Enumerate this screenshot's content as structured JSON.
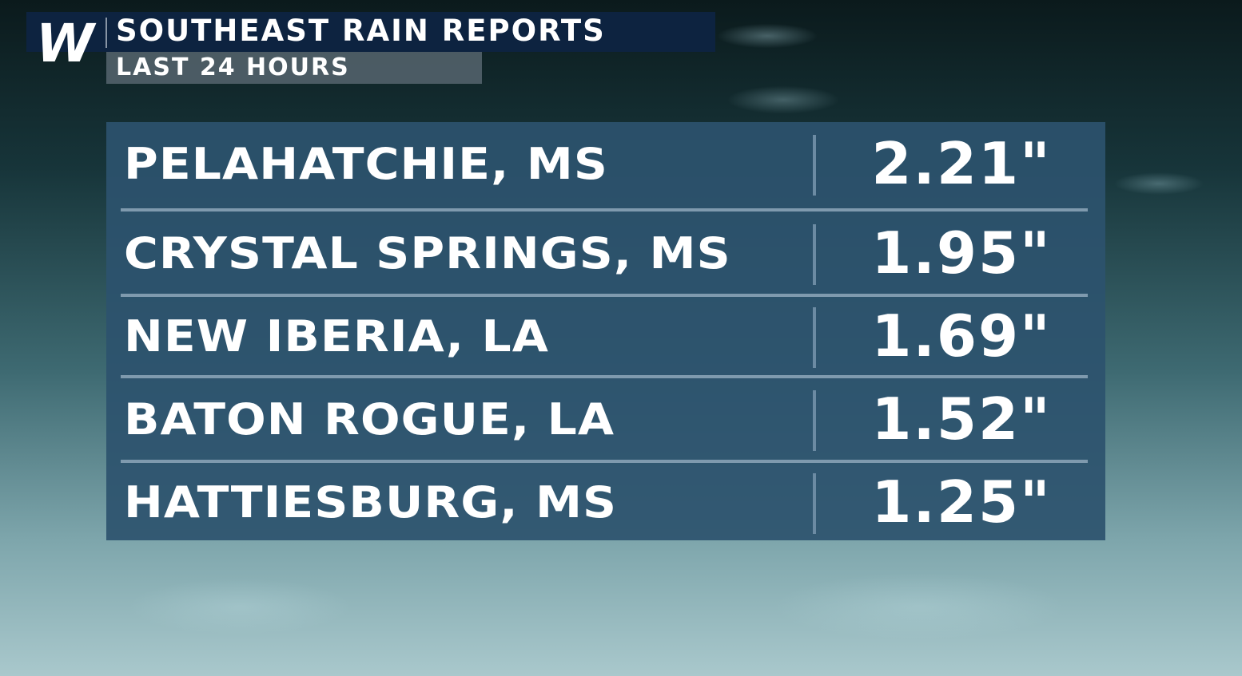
{
  "header": {
    "logo": "W",
    "title": "SOUTHEAST RAIN REPORTS",
    "subtitle": "LAST 24 HOURS"
  },
  "colors": {
    "header_bg": "#0d2340",
    "panel_bg": "#2c526e",
    "text": "#ffffff"
  },
  "chart_data": {
    "type": "table",
    "title": "SOUTHEAST RAIN REPORTS",
    "subtitle": "LAST 24 HOURS",
    "rows": [
      {
        "location": "PELAHATCHIE, MS",
        "rain": "2.21\""
      },
      {
        "location": "CRYSTAL SPRINGS, MS",
        "rain": "1.95\""
      },
      {
        "location": "NEW IBERIA, LA",
        "rain": "1.69\""
      },
      {
        "location": "BATON ROGUE, LA",
        "rain": "1.52\""
      },
      {
        "location": "HATTIESBURG, MS",
        "rain": "1.25\""
      }
    ]
  }
}
